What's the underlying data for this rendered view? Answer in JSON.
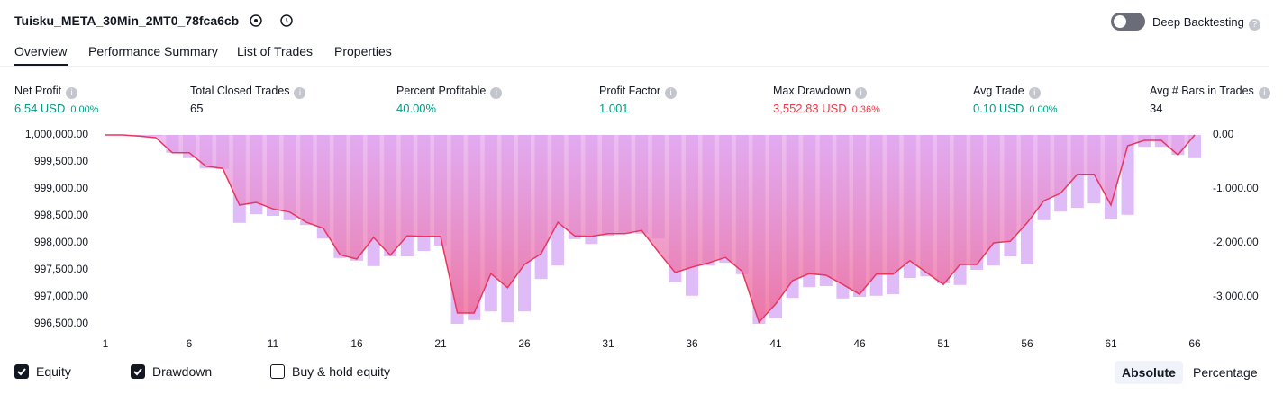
{
  "header": {
    "title": "Tuisku_META_30Min_2MT0_78fca6cb",
    "toggle_label": "Deep Backtesting"
  },
  "tabs": [
    "Overview",
    "Performance Summary",
    "List of Trades",
    "Properties"
  ],
  "stats": [
    {
      "label": "Net Profit",
      "value": "6.54 USD",
      "percent": "0.00%"
    },
    {
      "label": "Total Closed Trades",
      "value": "65"
    },
    {
      "label": "Percent Profitable",
      "value": "40.00%"
    },
    {
      "label": "Profit Factor",
      "value": "1.001"
    },
    {
      "label": "Max Drawdown",
      "value": "3,552.83 USD",
      "percent": "0.36%"
    },
    {
      "label": "Avg Trade",
      "value": "0.10 USD",
      "percent": "0.00%"
    },
    {
      "label": "Avg # Bars in Trades",
      "value": "34"
    }
  ],
  "chart_data": {
    "type": "line",
    "x": [
      1,
      2,
      3,
      4,
      5,
      6,
      7,
      8,
      9,
      10,
      11,
      12,
      13,
      14,
      15,
      16,
      17,
      18,
      19,
      20,
      21,
      22,
      23,
      24,
      25,
      26,
      27,
      28,
      29,
      30,
      31,
      32,
      33,
      34,
      35,
      36,
      37,
      38,
      39,
      40,
      41,
      42,
      43,
      44,
      45,
      46,
      47,
      48,
      49,
      50,
      51,
      52,
      53,
      54,
      55,
      56,
      57,
      58,
      59,
      60,
      61,
      62,
      63,
      64,
      65,
      66
    ],
    "xlim": [
      1,
      66
    ],
    "xticks": [
      1,
      6,
      11,
      16,
      21,
      26,
      31,
      36,
      41,
      46,
      51,
      56,
      61,
      66
    ],
    "ylim": [
      996500,
      1000000
    ],
    "yticks": [
      {
        "value": 1000000,
        "label": "1,000,000.00"
      },
      {
        "value": 999500,
        "label": "999,500.00"
      },
      {
        "value": 999000,
        "label": "999,000.00"
      },
      {
        "value": 998500,
        "label": "998,500.00"
      },
      {
        "value": 998000,
        "label": "998,000.00"
      },
      {
        "value": 997500,
        "label": "997,500.00"
      },
      {
        "value": 997000,
        "label": "997,000.00"
      },
      {
        "value": 996500,
        "label": "996,500.00"
      }
    ],
    "y2lim": [
      -3500,
      0
    ],
    "y2ticks": [
      {
        "value": 0,
        "label": "0.00"
      },
      {
        "value": -1000,
        "label": "-1,000.00"
      },
      {
        "value": -2000,
        "label": "-2,000.00"
      },
      {
        "value": -3000,
        "label": "-3,000.00"
      }
    ],
    "series": [
      {
        "name": "Equity",
        "color": "#e8365e",
        "values": [
          1000000,
          1000000,
          999980,
          999950,
          999670,
          999670,
          999420,
          999380,
          998700,
          998750,
          998630,
          998570,
          998380,
          998270,
          997780,
          997700,
          998100,
          997770,
          998130,
          998120,
          998120,
          996700,
          996700,
          997430,
          997170,
          997600,
          997800,
          998380,
          998130,
          998120,
          998170,
          998170,
          998230,
          997830,
          997450,
          997550,
          997630,
          997730,
          997470,
          996530,
          996870,
          997300,
          997430,
          997400,
          997230,
          997050,
          997420,
          997420,
          997670,
          997450,
          997230,
          997600,
          997600,
          998000,
          998030,
          998370,
          998780,
          998920,
          999270,
          999270,
          998700,
          999800,
          999900,
          999900,
          999630,
          1000000
        ]
      },
      {
        "name": "Drawdown",
        "color": "#dfbcf7",
        "axis": "y2",
        "values": [
          0,
          0,
          -20,
          -20,
          -330,
          -430,
          -620,
          -630,
          -1630,
          -1470,
          -1500,
          -1580,
          -1670,
          -1920,
          -2280,
          -2330,
          -2430,
          -2250,
          -2250,
          -2150,
          -2050,
          -3500,
          -3430,
          -3270,
          -3470,
          -3270,
          -2670,
          -2420,
          -1930,
          -2020,
          -1870,
          -1830,
          -1830,
          -1920,
          -2730,
          -2980,
          -2420,
          -2370,
          -2580,
          -3500,
          -3400,
          -3020,
          -2820,
          -2800,
          -3030,
          -3000,
          -2980,
          -2950,
          -2650,
          -2620,
          -2750,
          -2780,
          -2500,
          -2420,
          -2250,
          -2400,
          -1580,
          -1420,
          -1350,
          -1270,
          -1550,
          -1480,
          -220,
          -220,
          -370,
          -430
        ]
      }
    ]
  },
  "controls": {
    "buy_hold": "Buy & hold equity",
    "absolute": "Absolute",
    "percentage": "Percentage"
  }
}
